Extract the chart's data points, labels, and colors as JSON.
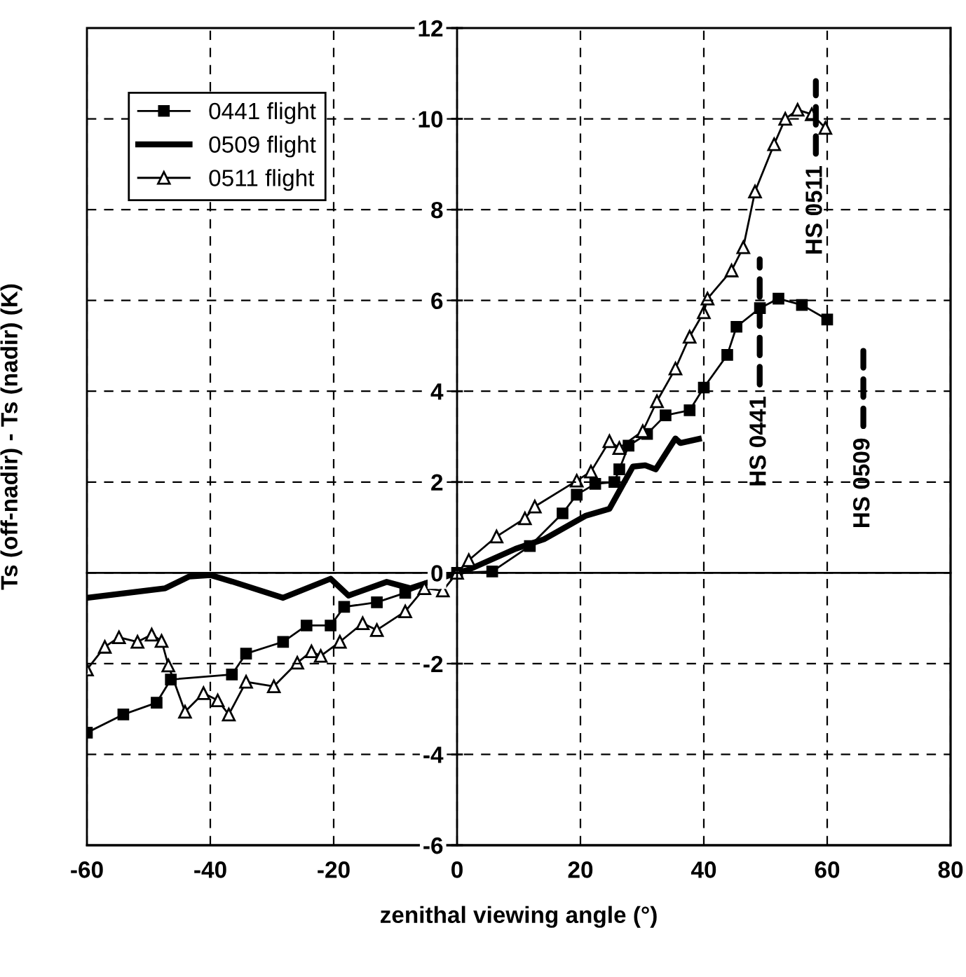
{
  "chart_data": {
    "type": "line",
    "xlabel": "zenithal viewing angle (°)",
    "ylabel": "Ts (off-nadir) - Ts (nadir) (K)",
    "xlim": [
      -60,
      80
    ],
    "xticks": [
      -60,
      -40,
      -20,
      0,
      20,
      40,
      60,
      80
    ],
    "ylim": [
      -6,
      12
    ],
    "yticks": [
      -6,
      -4,
      -2,
      0,
      2,
      4,
      6,
      8,
      10,
      12
    ],
    "grid": true,
    "legend": "top left",
    "series": [
      {
        "name": "0441 flight",
        "color": "#000000",
        "marker": "square",
        "x": [
          -60,
          -54.1,
          -48.7,
          -46.4,
          -36.5,
          -34.2,
          -28.2,
          -24.4,
          -20.5,
          -18.3,
          -13,
          -8.4,
          0,
          5.7,
          11.8,
          17.1,
          19.4,
          22.4,
          25.5,
          26.3,
          27.8,
          30.8,
          33.8,
          37.7,
          40,
          43.8,
          45.3,
          49.1,
          52.1,
          55.9,
          60
        ],
        "values": [
          -3.52,
          -3.12,
          -2.86,
          -2.35,
          -2.24,
          -1.78,
          -1.52,
          -1.16,
          -1.16,
          -0.75,
          -0.65,
          -0.44,
          0,
          0.03,
          0.59,
          1.31,
          1.72,
          1.96,
          2.0,
          2.28,
          2.8,
          3.06,
          3.47,
          3.58,
          4.08,
          4.8,
          5.42,
          5.83,
          6.04,
          5.9,
          5.58
        ]
      },
      {
        "name": "0509 flight",
        "color": "#000000",
        "marker": "none",
        "x": [
          -60,
          -47.3,
          -43.4,
          -40,
          -36.5,
          -28.2,
          -20.5,
          -17.6,
          -11.4,
          -7.6,
          0,
          1.9,
          9.5,
          14.1,
          20.9,
          24.7,
          28.5,
          30.5,
          32.2,
          35.4,
          36.2,
          39.2
        ],
        "values": [
          -0.55,
          -0.34,
          -0.08,
          -0.05,
          -0.19,
          -0.55,
          -0.13,
          -0.5,
          -0.2,
          -0.34,
          0,
          0.07,
          0.53,
          0.74,
          1.26,
          1.41,
          2.34,
          2.37,
          2.28,
          2.96,
          2.86,
          2.95
        ]
      },
      {
        "name": "0511 flight",
        "color": "#000000",
        "marker": "triangle",
        "x": [
          -60,
          -57.1,
          -54.8,
          -51.8,
          -49.5,
          -47.9,
          -46.8,
          -44.1,
          -41.1,
          -38.8,
          -37,
          -34.2,
          -29.7,
          -25.9,
          -23.6,
          -22.1,
          -19,
          -15.3,
          -13,
          -8.4,
          -5.3,
          -2.3,
          0,
          1.9,
          6.4,
          11,
          12.6,
          19.4,
          21.7,
          24.7,
          26.3,
          30.1,
          32.4,
          35.4,
          37.7,
          40,
          40.6,
          44.5,
          46.4,
          48.3,
          51.4,
          53.2,
          55.2,
          57.5,
          59.7
        ],
        "values": [
          -2.13,
          -1.63,
          -1.42,
          -1.52,
          -1.36,
          -1.5,
          -2.04,
          -3.06,
          -2.65,
          -2.81,
          -3.12,
          -2.4,
          -2.5,
          -1.98,
          -1.73,
          -1.83,
          -1.52,
          -1.11,
          -1.26,
          -0.85,
          -0.34,
          -0.39,
          0,
          0.28,
          0.8,
          1.2,
          1.46,
          2.03,
          2.23,
          2.9,
          2.75,
          3.12,
          3.78,
          4.5,
          5.2,
          5.74,
          6.04,
          6.66,
          7.17,
          8.4,
          9.44,
          10.0,
          10.2,
          10.1,
          9.8
        ]
      }
    ],
    "annotations": [
      "HS 0441",
      "HS 0511",
      "HS 0509"
    ]
  }
}
